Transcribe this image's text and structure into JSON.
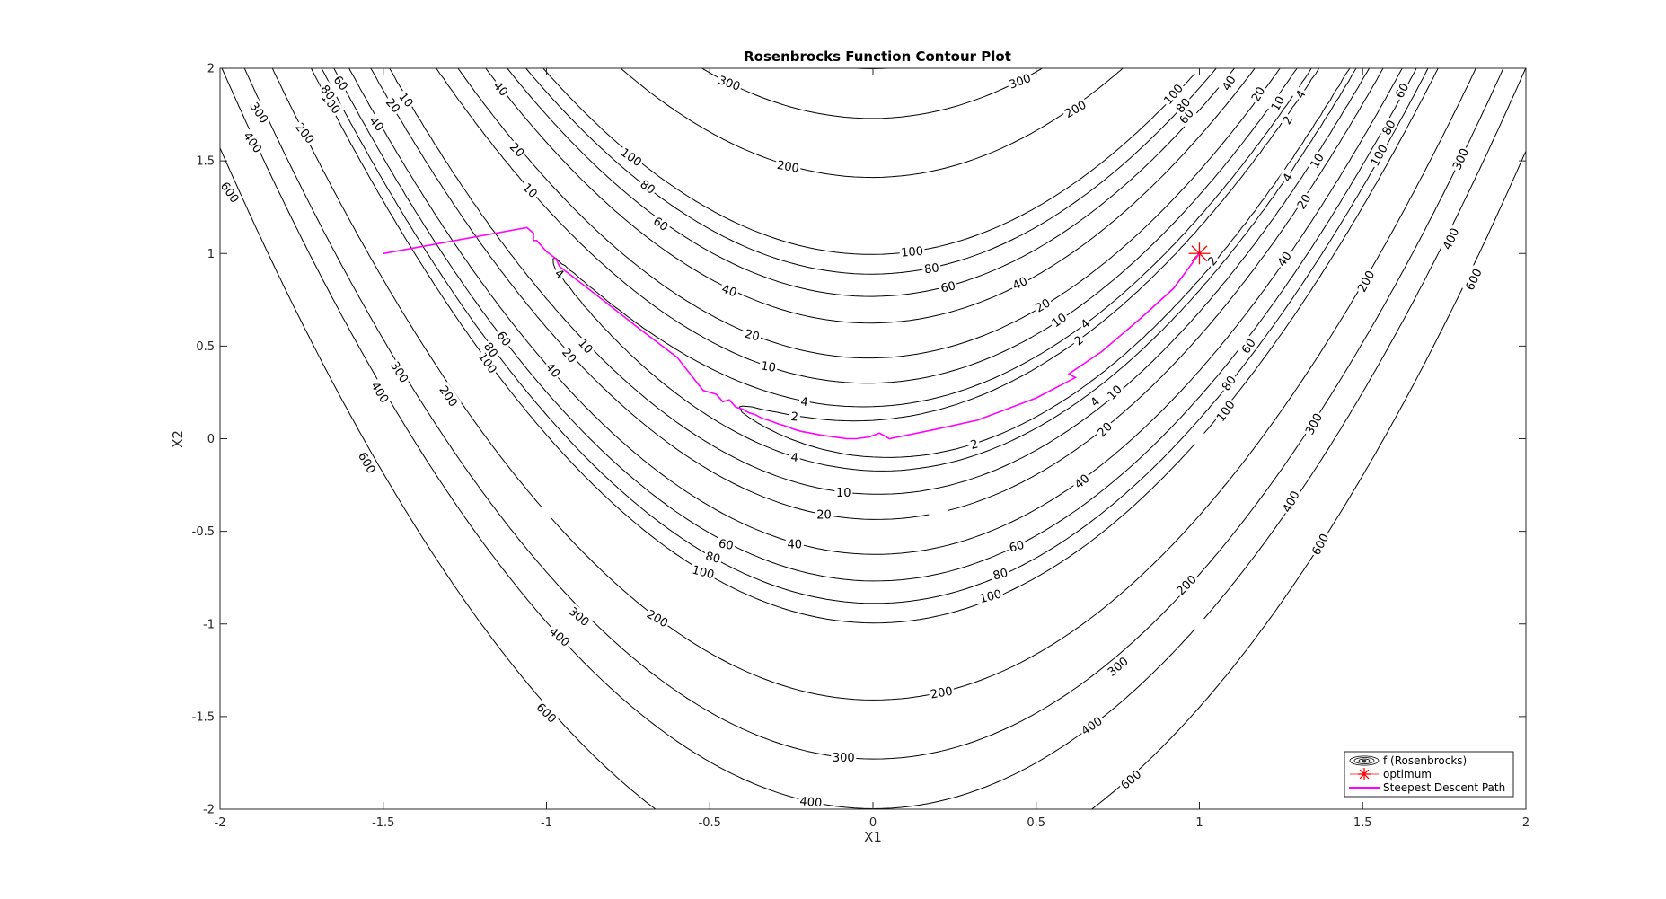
{
  "chart_data": {
    "type": "contour",
    "title": "Rosenbrocks Function Contour Plot",
    "xlabel": "X1",
    "ylabel": "X2",
    "xlim": [
      -2,
      2
    ],
    "ylim": [
      -2,
      2
    ],
    "xticks": [
      -2,
      -1.5,
      -1,
      -0.5,
      0,
      0.5,
      1,
      1.5,
      2
    ],
    "yticks": [
      -2,
      -1.5,
      -1,
      -0.5,
      0,
      0.5,
      1,
      1.5,
      2
    ],
    "xtick_labels": [
      "-2",
      "-1.5",
      "-1",
      "-0.5",
      "0",
      "0.5",
      "1",
      "1.5",
      "2"
    ],
    "ytick_labels": [
      "-2",
      "-1.5",
      "-1",
      "-0.5",
      "0",
      "0.5",
      "1",
      "1.5",
      "2"
    ],
    "grid": false,
    "legend_position": "bottom-right",
    "contour_levels": [
      2,
      4,
      10,
      20,
      40,
      60,
      80,
      100,
      200,
      300,
      400,
      600
    ],
    "contour_labels": [
      {
        "text": "300",
        "x": -1.88,
        "y": 1.76,
        "angle": 55
      },
      {
        "text": "400",
        "x": -1.9,
        "y": 1.6,
        "angle": 55
      },
      {
        "text": "600",
        "x": -1.97,
        "y": 1.33,
        "angle": 55
      },
      {
        "text": "200",
        "x": -1.74,
        "y": 1.65,
        "angle": 52
      },
      {
        "text": "100",
        "x": -1.66,
        "y": 1.81,
        "angle": 52
      },
      {
        "text": "80",
        "x": -1.67,
        "y": 1.87,
        "angle": 52
      },
      {
        "text": "60",
        "x": -1.63,
        "y": 1.92,
        "angle": 52
      },
      {
        "text": "40",
        "x": -1.52,
        "y": 1.7,
        "angle": 50
      },
      {
        "text": "20",
        "x": -1.47,
        "y": 1.8,
        "angle": 50
      },
      {
        "text": "10",
        "x": -1.43,
        "y": 1.83,
        "angle": 50
      },
      {
        "text": "40",
        "x": -1.14,
        "y": 1.89,
        "angle": 48
      },
      {
        "text": "20",
        "x": -1.09,
        "y": 1.56,
        "angle": 45
      },
      {
        "text": "10",
        "x": -1.05,
        "y": 1.34,
        "angle": 45
      },
      {
        "text": "4",
        "x": -0.96,
        "y": 0.89,
        "angle": 40
      },
      {
        "text": "300",
        "x": -0.44,
        "y": 1.92,
        "angle": 20
      },
      {
        "text": "300",
        "x": 0.45,
        "y": 1.93,
        "angle": -20
      },
      {
        "text": "200",
        "x": -0.26,
        "y": 1.47,
        "angle": 10
      },
      {
        "text": "200",
        "x": 0.62,
        "y": 1.78,
        "angle": -30
      },
      {
        "text": "100",
        "x": -0.74,
        "y": 1.52,
        "angle": 35
      },
      {
        "text": "80",
        "x": -0.69,
        "y": 1.36,
        "angle": 35
      },
      {
        "text": "60",
        "x": -0.65,
        "y": 1.16,
        "angle": 35
      },
      {
        "text": "100",
        "x": 0.12,
        "y": 1.01,
        "angle": -5
      },
      {
        "text": "80",
        "x": 0.18,
        "y": 0.92,
        "angle": -8
      },
      {
        "text": "60",
        "x": 0.23,
        "y": 0.82,
        "angle": -12
      },
      {
        "text": "40",
        "x": -0.44,
        "y": 0.8,
        "angle": 20
      },
      {
        "text": "40",
        "x": 0.45,
        "y": 0.84,
        "angle": -25
      },
      {
        "text": "20",
        "x": -0.37,
        "y": 0.56,
        "angle": 15
      },
      {
        "text": "20",
        "x": 0.52,
        "y": 0.72,
        "angle": -30
      },
      {
        "text": "10",
        "x": -0.32,
        "y": 0.39,
        "angle": 10
      },
      {
        "text": "10",
        "x": 0.57,
        "y": 0.64,
        "angle": -35
      },
      {
        "text": "4",
        "x": -0.21,
        "y": 0.2,
        "angle": 5
      },
      {
        "text": "4",
        "x": 0.65,
        "y": 0.62,
        "angle": -40
      },
      {
        "text": "2",
        "x": -0.24,
        "y": 0.12,
        "angle": 5
      },
      {
        "text": "2",
        "x": 0.63,
        "y": 0.53,
        "angle": -40
      },
      {
        "text": "2",
        "x": 0.31,
        "y": -0.03,
        "angle": -15
      },
      {
        "text": "4",
        "x": -0.24,
        "y": -0.1,
        "angle": 5
      },
      {
        "text": "10",
        "x": -0.09,
        "y": -0.29,
        "angle": 0
      },
      {
        "text": "20",
        "x": -0.15,
        "y": -0.41,
        "angle": 0
      },
      {
        "text": "40",
        "x": -0.24,
        "y": -0.57,
        "angle": 0
      },
      {
        "text": "60",
        "x": -0.45,
        "y": -0.57,
        "angle": 10
      },
      {
        "text": "80",
        "x": -0.49,
        "y": -0.64,
        "angle": 15
      },
      {
        "text": "100",
        "x": -0.52,
        "y": -0.72,
        "angle": 15
      },
      {
        "text": "60",
        "x": 0.44,
        "y": -0.58,
        "angle": -15
      },
      {
        "text": "80",
        "x": 0.39,
        "y": -0.73,
        "angle": -15
      },
      {
        "text": "100",
        "x": 0.36,
        "y": -0.85,
        "angle": -15
      },
      {
        "text": "200",
        "x": -0.66,
        "y": -0.97,
        "angle": 30
      },
      {
        "text": "300",
        "x": -0.9,
        "y": -0.96,
        "angle": 40
      },
      {
        "text": "400",
        "x": -0.96,
        "y": -1.07,
        "angle": 40
      },
      {
        "text": "600",
        "x": -1.0,
        "y": -1.48,
        "angle": 45
      },
      {
        "text": "200",
        "x": 0.21,
        "y": -1.37,
        "angle": -10
      },
      {
        "text": "300",
        "x": -0.09,
        "y": -1.72,
        "angle": 0
      },
      {
        "text": "400",
        "x": -0.19,
        "y": -1.96,
        "angle": 5
      },
      {
        "text": "600",
        "x": 0.79,
        "y": -1.84,
        "angle": -40
      },
      {
        "text": "400",
        "x": 0.67,
        "y": -1.55,
        "angle": -35
      },
      {
        "text": "300",
        "x": 0.75,
        "y": -1.23,
        "angle": -40
      },
      {
        "text": "200",
        "x": 0.96,
        "y": -0.79,
        "angle": -45
      },
      {
        "text": "40",
        "x": 0.64,
        "y": -0.23,
        "angle": -40
      },
      {
        "text": "20",
        "x": 0.71,
        "y": 0.05,
        "angle": -45
      },
      {
        "text": "10",
        "x": 0.74,
        "y": 0.25,
        "angle": -45
      },
      {
        "text": "4",
        "x": 0.68,
        "y": 0.2,
        "angle": -45
      },
      {
        "text": "2",
        "x": 1.04,
        "y": 0.96,
        "angle": -50
      },
      {
        "text": "60",
        "x": 1.15,
        "y": 0.5,
        "angle": -55
      },
      {
        "text": "80",
        "x": 1.09,
        "y": 0.3,
        "angle": -55
      },
      {
        "text": "100",
        "x": 1.08,
        "y": 0.15,
        "angle": -55
      },
      {
        "text": "40",
        "x": 1.26,
        "y": 0.97,
        "angle": -55
      },
      {
        "text": "20",
        "x": 1.32,
        "y": 1.28,
        "angle": -58
      },
      {
        "text": "4",
        "x": 1.27,
        "y": 1.41,
        "angle": -60
      },
      {
        "text": "10",
        "x": 1.36,
        "y": 1.5,
        "angle": -60
      },
      {
        "text": "2",
        "x": 1.27,
        "y": 1.72,
        "angle": -60
      },
      {
        "text": "4",
        "x": 1.31,
        "y": 1.86,
        "angle": -60
      },
      {
        "text": "10",
        "x": 1.24,
        "y": 1.81,
        "angle": -60
      },
      {
        "text": "20",
        "x": 1.18,
        "y": 1.86,
        "angle": -60
      },
      {
        "text": "40",
        "x": 1.09,
        "y": 1.92,
        "angle": -60
      },
      {
        "text": "60",
        "x": 0.96,
        "y": 1.74,
        "angle": -50
      },
      {
        "text": "80",
        "x": 0.95,
        "y": 1.8,
        "angle": -50
      },
      {
        "text": "100",
        "x": 0.92,
        "y": 1.86,
        "angle": -50
      },
      {
        "text": "100",
        "x": 1.55,
        "y": 1.53,
        "angle": -62
      },
      {
        "text": "80",
        "x": 1.58,
        "y": 1.68,
        "angle": -62
      },
      {
        "text": "60",
        "x": 1.62,
        "y": 1.88,
        "angle": -62
      },
      {
        "text": "300",
        "x": 1.8,
        "y": 1.51,
        "angle": -65
      },
      {
        "text": "400",
        "x": 1.77,
        "y": 1.08,
        "angle": -65
      },
      {
        "text": "600",
        "x": 1.84,
        "y": 0.86,
        "angle": -65
      },
      {
        "text": "200",
        "x": 1.51,
        "y": 0.85,
        "angle": -62
      },
      {
        "text": "300",
        "x": 1.35,
        "y": 0.08,
        "angle": -62
      },
      {
        "text": "400",
        "x": 1.28,
        "y": -0.34,
        "angle": -62
      },
      {
        "text": "600",
        "x": 1.37,
        "y": -0.57,
        "angle": -62
      },
      {
        "text": "600",
        "x": -1.55,
        "y": -0.13,
        "angle": 60
      },
      {
        "text": "400",
        "x": -1.51,
        "y": 0.25,
        "angle": 58
      },
      {
        "text": "300",
        "x": -1.45,
        "y": 0.36,
        "angle": 58
      },
      {
        "text": "200",
        "x": -1.3,
        "y": 0.23,
        "angle": 56
      },
      {
        "text": "100",
        "x": -1.18,
        "y": 0.41,
        "angle": 55
      },
      {
        "text": "80",
        "x": -1.17,
        "y": 0.48,
        "angle": 55
      },
      {
        "text": "60",
        "x": -1.13,
        "y": 0.54,
        "angle": 55
      },
      {
        "text": "40",
        "x": -0.98,
        "y": 0.37,
        "angle": 50
      },
      {
        "text": "20",
        "x": -0.93,
        "y": 0.45,
        "angle": 50
      },
      {
        "text": "10",
        "x": -0.88,
        "y": 0.5,
        "angle": 48
      }
    ],
    "series": [
      {
        "name": "optimum",
        "type": "marker",
        "marker": "asterisk",
        "color": "#ff0000",
        "points": [
          [
            1,
            1
          ]
        ]
      },
      {
        "name": "Steepest Descent Path",
        "type": "line",
        "color": "#ff00ff",
        "points": [
          [
            -1.5,
            1.0
          ],
          [
            -1.06,
            1.14
          ],
          [
            -1.04,
            1.11
          ],
          [
            -1.04,
            1.07
          ],
          [
            -1.03,
            1.07
          ],
          [
            -1.0,
            1.01
          ],
          [
            -0.97,
            0.97
          ],
          [
            -0.96,
            0.93
          ],
          [
            -0.85,
            0.78
          ],
          [
            -0.72,
            0.6
          ],
          [
            -0.6,
            0.44
          ],
          [
            -0.52,
            0.26
          ],
          [
            -0.5,
            0.25
          ],
          [
            -0.48,
            0.24
          ],
          [
            -0.46,
            0.2
          ],
          [
            -0.44,
            0.21
          ],
          [
            -0.42,
            0.17
          ],
          [
            -0.4,
            0.16
          ],
          [
            -0.38,
            0.14
          ],
          [
            -0.36,
            0.13
          ],
          [
            -0.34,
            0.11
          ],
          [
            -0.32,
            0.1
          ],
          [
            -0.29,
            0.08
          ],
          [
            -0.27,
            0.07
          ],
          [
            -0.24,
            0.05
          ],
          [
            -0.22,
            0.04
          ],
          [
            -0.19,
            0.03
          ],
          [
            -0.16,
            0.02
          ],
          [
            -0.12,
            0.01
          ],
          [
            -0.08,
            0.0
          ],
          [
            -0.05,
            0.0
          ],
          [
            -0.01,
            0.01
          ],
          [
            0.02,
            0.03
          ],
          [
            0.05,
            0.0
          ],
          [
            0.19,
            0.05
          ],
          [
            0.32,
            0.1
          ],
          [
            0.5,
            0.22
          ],
          [
            0.62,
            0.33
          ],
          [
            0.6,
            0.35
          ],
          [
            0.7,
            0.47
          ],
          [
            0.82,
            0.65
          ],
          [
            0.92,
            0.81
          ],
          [
            1.0,
            1.0
          ]
        ]
      }
    ],
    "legend": [
      {
        "label": "f (Rosenbrocks)",
        "symbol": "contour"
      },
      {
        "label": "optimum",
        "symbol": "asterisk",
        "color": "#ff0000"
      },
      {
        "label": "Steepest Descent Path",
        "symbol": "line",
        "color": "#ff00ff"
      }
    ]
  }
}
